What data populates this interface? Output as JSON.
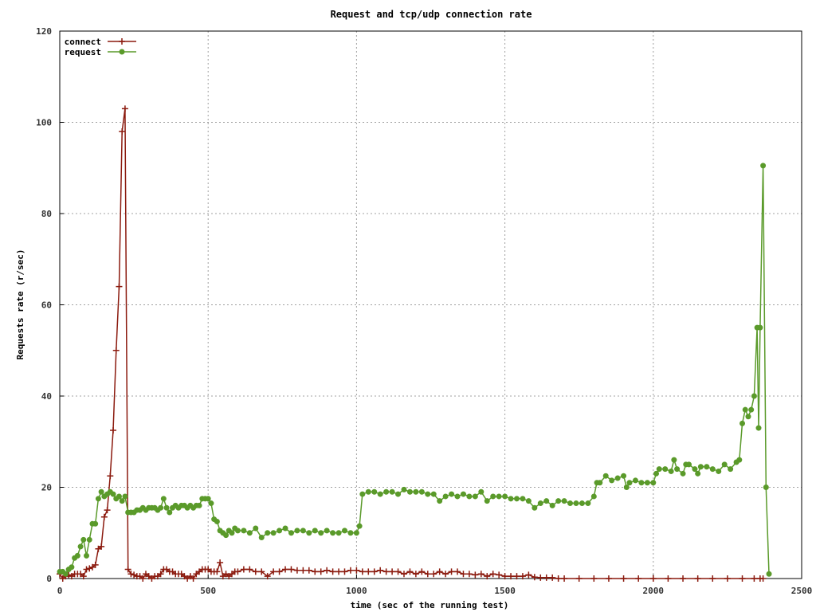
{
  "chart_data": {
    "type": "line",
    "title": "Request and tcp/udp connection rate",
    "xlabel": "time (sec of the running test)",
    "ylabel": "Requests rate (r/sec)",
    "xlim": [
      0,
      2500
    ],
    "ylim": [
      0,
      120
    ],
    "xticks": [
      0,
      500,
      1000,
      1500,
      2000,
      2500
    ],
    "yticks": [
      0,
      20,
      40,
      60,
      80,
      100,
      120
    ],
    "grid": true,
    "legend_position": "top-left",
    "series": [
      {
        "name": "connect",
        "color": "#8b1a0e",
        "marker": "plus",
        "points": [
          [
            0,
            1
          ],
          [
            10,
            0
          ],
          [
            20,
            0.5
          ],
          [
            30,
            0.8
          ],
          [
            40,
            0.5
          ],
          [
            50,
            1
          ],
          [
            60,
            1
          ],
          [
            70,
            1
          ],
          [
            80,
            0.5
          ],
          [
            90,
            2
          ],
          [
            100,
            2.2
          ],
          [
            110,
            2.5
          ],
          [
            120,
            3
          ],
          [
            130,
            6.5
          ],
          [
            140,
            7
          ],
          [
            150,
            13.5
          ],
          [
            160,
            15
          ],
          [
            170,
            22.5
          ],
          [
            180,
            32.5
          ],
          [
            190,
            50
          ],
          [
            200,
            64
          ],
          [
            210,
            98
          ],
          [
            220,
            103
          ],
          [
            230,
            2
          ],
          [
            240,
            1
          ],
          [
            250,
            0.8
          ],
          [
            260,
            0.5
          ],
          [
            270,
            0.5
          ],
          [
            280,
            0
          ],
          [
            290,
            1
          ],
          [
            300,
            0.5
          ],
          [
            310,
            0
          ],
          [
            320,
            0.5
          ],
          [
            330,
            0.5
          ],
          [
            340,
            1
          ],
          [
            350,
            2
          ],
          [
            360,
            2
          ],
          [
            370,
            1.5
          ],
          [
            380,
            1.5
          ],
          [
            390,
            1
          ],
          [
            400,
            1
          ],
          [
            410,
            1
          ],
          [
            420,
            0.5
          ],
          [
            430,
            0
          ],
          [
            440,
            0.5
          ],
          [
            450,
            0
          ],
          [
            460,
            1
          ],
          [
            470,
            1.5
          ],
          [
            480,
            2
          ],
          [
            490,
            2
          ],
          [
            500,
            2
          ],
          [
            510,
            1.5
          ],
          [
            520,
            1.5
          ],
          [
            530,
            1.5
          ],
          [
            540,
            3.5
          ],
          [
            550,
            0.5
          ],
          [
            560,
            1
          ],
          [
            570,
            0.5
          ],
          [
            580,
            1
          ],
          [
            590,
            1.5
          ],
          [
            600,
            1.5
          ],
          [
            620,
            2
          ],
          [
            640,
            2
          ],
          [
            660,
            1.5
          ],
          [
            680,
            1.5
          ],
          [
            700,
            0.5
          ],
          [
            720,
            1.5
          ],
          [
            740,
            1.5
          ],
          [
            760,
            2
          ],
          [
            780,
            2
          ],
          [
            800,
            1.8
          ],
          [
            820,
            1.8
          ],
          [
            840,
            1.8
          ],
          [
            860,
            1.5
          ],
          [
            880,
            1.5
          ],
          [
            900,
            1.8
          ],
          [
            920,
            1.5
          ],
          [
            940,
            1.5
          ],
          [
            960,
            1.5
          ],
          [
            980,
            1.8
          ],
          [
            1000,
            1.8
          ],
          [
            1020,
            1.5
          ],
          [
            1040,
            1.5
          ],
          [
            1060,
            1.5
          ],
          [
            1080,
            1.8
          ],
          [
            1100,
            1.5
          ],
          [
            1120,
            1.5
          ],
          [
            1140,
            1.5
          ],
          [
            1160,
            1
          ],
          [
            1180,
            1.5
          ],
          [
            1200,
            1
          ],
          [
            1220,
            1.5
          ],
          [
            1240,
            1
          ],
          [
            1260,
            1
          ],
          [
            1280,
            1.5
          ],
          [
            1300,
            1
          ],
          [
            1320,
            1.5
          ],
          [
            1340,
            1.5
          ],
          [
            1360,
            1
          ],
          [
            1380,
            1
          ],
          [
            1400,
            0.8
          ],
          [
            1420,
            1
          ],
          [
            1440,
            0.5
          ],
          [
            1460,
            1
          ],
          [
            1480,
            0.8
          ],
          [
            1500,
            0.5
          ],
          [
            1520,
            0.5
          ],
          [
            1540,
            0.5
          ],
          [
            1560,
            0.5
          ],
          [
            1580,
            0.8
          ],
          [
            1600,
            0.3
          ],
          [
            1620,
            0.2
          ],
          [
            1640,
            0.2
          ],
          [
            1660,
            0.2
          ],
          [
            1680,
            0
          ],
          [
            1700,
            0
          ],
          [
            1750,
            0
          ],
          [
            1800,
            0
          ],
          [
            1850,
            0
          ],
          [
            1900,
            0
          ],
          [
            1950,
            0
          ],
          [
            2000,
            0
          ],
          [
            2050,
            0
          ],
          [
            2100,
            0
          ],
          [
            2150,
            0
          ],
          [
            2200,
            0
          ],
          [
            2250,
            0
          ],
          [
            2300,
            0
          ],
          [
            2340,
            0
          ],
          [
            2360,
            0
          ],
          [
            2370,
            0
          ]
        ]
      },
      {
        "name": "request",
        "color": "#5a9a2a",
        "marker": "circle",
        "points": [
          [
            0,
            1.5
          ],
          [
            10,
            1.5
          ],
          [
            20,
            1
          ],
          [
            30,
            2
          ],
          [
            40,
            2.5
          ],
          [
            50,
            4.5
          ],
          [
            60,
            5
          ],
          [
            70,
            7
          ],
          [
            80,
            8.5
          ],
          [
            90,
            5
          ],
          [
            100,
            8.5
          ],
          [
            110,
            12
          ],
          [
            120,
            12
          ],
          [
            130,
            17.5
          ],
          [
            140,
            19
          ],
          [
            150,
            18
          ],
          [
            160,
            18.5
          ],
          [
            170,
            19
          ],
          [
            180,
            18.5
          ],
          [
            190,
            17.5
          ],
          [
            200,
            18
          ],
          [
            210,
            17
          ],
          [
            220,
            18
          ],
          [
            230,
            14.5
          ],
          [
            240,
            14.5
          ],
          [
            250,
            14.5
          ],
          [
            260,
            15
          ],
          [
            270,
            15
          ],
          [
            280,
            15.5
          ],
          [
            290,
            15
          ],
          [
            300,
            15.5
          ],
          [
            310,
            15.5
          ],
          [
            320,
            15.5
          ],
          [
            330,
            15
          ],
          [
            340,
            15.5
          ],
          [
            350,
            17.5
          ],
          [
            360,
            15.5
          ],
          [
            370,
            14.5
          ],
          [
            380,
            15.5
          ],
          [
            390,
            16
          ],
          [
            400,
            15.5
          ],
          [
            410,
            16
          ],
          [
            420,
            16
          ],
          [
            430,
            15.5
          ],
          [
            440,
            16
          ],
          [
            450,
            15.5
          ],
          [
            460,
            16
          ],
          [
            470,
            16
          ],
          [
            480,
            17.5
          ],
          [
            490,
            17.5
          ],
          [
            500,
            17.5
          ],
          [
            510,
            16.5
          ],
          [
            520,
            13
          ],
          [
            530,
            12.5
          ],
          [
            540,
            10.5
          ],
          [
            550,
            10
          ],
          [
            560,
            9.5
          ],
          [
            570,
            10.5
          ],
          [
            580,
            10
          ],
          [
            590,
            11
          ],
          [
            600,
            10.5
          ],
          [
            620,
            10.5
          ],
          [
            640,
            10
          ],
          [
            660,
            11
          ],
          [
            680,
            9
          ],
          [
            700,
            10
          ],
          [
            720,
            10
          ],
          [
            740,
            10.5
          ],
          [
            760,
            11
          ],
          [
            780,
            10
          ],
          [
            800,
            10.5
          ],
          [
            820,
            10.5
          ],
          [
            840,
            10
          ],
          [
            860,
            10.5
          ],
          [
            880,
            10
          ],
          [
            900,
            10.5
          ],
          [
            920,
            10
          ],
          [
            940,
            10
          ],
          [
            960,
            10.5
          ],
          [
            980,
            10
          ],
          [
            1000,
            10
          ],
          [
            1010,
            11.5
          ],
          [
            1020,
            18.5
          ],
          [
            1040,
            19
          ],
          [
            1060,
            19
          ],
          [
            1080,
            18.5
          ],
          [
            1100,
            19
          ],
          [
            1120,
            19
          ],
          [
            1140,
            18.5
          ],
          [
            1160,
            19.5
          ],
          [
            1180,
            19
          ],
          [
            1200,
            19
          ],
          [
            1220,
            19
          ],
          [
            1240,
            18.5
          ],
          [
            1260,
            18.5
          ],
          [
            1280,
            17
          ],
          [
            1300,
            18
          ],
          [
            1320,
            18.5
          ],
          [
            1340,
            18
          ],
          [
            1360,
            18.5
          ],
          [
            1380,
            18
          ],
          [
            1400,
            18
          ],
          [
            1420,
            19
          ],
          [
            1440,
            17
          ],
          [
            1460,
            18
          ],
          [
            1480,
            18
          ],
          [
            1500,
            18
          ],
          [
            1520,
            17.5
          ],
          [
            1540,
            17.5
          ],
          [
            1560,
            17.5
          ],
          [
            1580,
            17
          ],
          [
            1600,
            15.5
          ],
          [
            1620,
            16.5
          ],
          [
            1640,
            17
          ],
          [
            1660,
            16
          ],
          [
            1680,
            17
          ],
          [
            1700,
            17
          ],
          [
            1720,
            16.5
          ],
          [
            1740,
            16.5
          ],
          [
            1760,
            16.5
          ],
          [
            1780,
            16.5
          ],
          [
            1800,
            18
          ],
          [
            1810,
            21
          ],
          [
            1820,
            21
          ],
          [
            1840,
            22.5
          ],
          [
            1860,
            21.5
          ],
          [
            1880,
            22
          ],
          [
            1900,
            22.5
          ],
          [
            1910,
            20
          ],
          [
            1920,
            21
          ],
          [
            1940,
            21.5
          ],
          [
            1960,
            21
          ],
          [
            1980,
            21
          ],
          [
            2000,
            21
          ],
          [
            2010,
            23
          ],
          [
            2020,
            24
          ],
          [
            2040,
            24
          ],
          [
            2060,
            23.5
          ],
          [
            2070,
            26
          ],
          [
            2080,
            24
          ],
          [
            2100,
            23
          ],
          [
            2110,
            25
          ],
          [
            2120,
            25
          ],
          [
            2140,
            24
          ],
          [
            2150,
            23
          ],
          [
            2160,
            24.5
          ],
          [
            2180,
            24.5
          ],
          [
            2200,
            24
          ],
          [
            2220,
            23.5
          ],
          [
            2240,
            25
          ],
          [
            2260,
            24
          ],
          [
            2280,
            25.5
          ],
          [
            2290,
            26
          ],
          [
            2300,
            34
          ],
          [
            2310,
            37
          ],
          [
            2320,
            35.5
          ],
          [
            2330,
            37
          ],
          [
            2340,
            40
          ],
          [
            2350,
            55
          ],
          [
            2355,
            33
          ],
          [
            2360,
            55
          ],
          [
            2370,
            90.5
          ],
          [
            2380,
            20
          ],
          [
            2390,
            1
          ]
        ]
      }
    ]
  }
}
